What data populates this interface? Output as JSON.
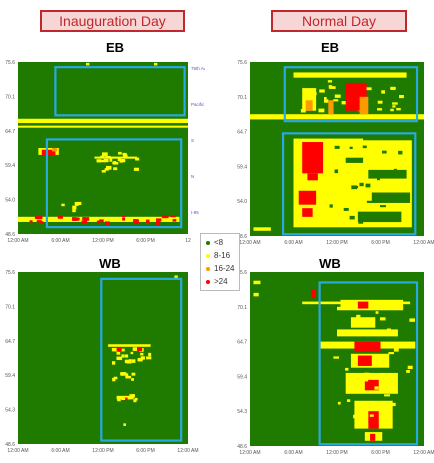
{
  "headers": {
    "left": "Inauguration Day",
    "right": "Normal Day"
  },
  "colors": {
    "green": "#1f7a00",
    "yellow": "#ffff00",
    "orange": "#ff9900",
    "red": "#ff0000",
    "highlight": "#29a9e0",
    "header_border": "#c0282d"
  },
  "legend": [
    {
      "label": "<8",
      "color": "#1f7a00"
    },
    {
      "label": "8-16",
      "color": "#ffff00"
    },
    {
      "label": "16-24",
      "color": "#ff9900"
    },
    {
      "label": ">24",
      "color": "#ff0000"
    }
  ],
  "chart_data": [
    {
      "type": "heatmap",
      "title": "EB",
      "x_ticks": [
        "12:00 AM",
        "6:00 AM",
        "12:00 PM",
        "6:00 PM",
        "12"
      ],
      "y_ticks": [
        "75.6",
        "70.1",
        "64.7",
        "59.4",
        "54.0",
        "48.6"
      ],
      "right_labels": [
        "75th Ave",
        "",
        "Pacific Ave",
        "",
        "S",
        "",
        "N",
        "",
        "I-95"
      ],
      "ylim": [
        48.6,
        75.6
      ]
    },
    {
      "type": "heatmap",
      "title": "EB",
      "x_ticks": [
        "12:00 AM",
        "6:00 AM",
        "12:00 PM",
        "6:00 PM",
        "12:00 AM"
      ],
      "y_ticks": [
        "75.6",
        "70.1",
        "64.7",
        "59.4",
        "54.0",
        "48.6"
      ],
      "ylim": [
        48.6,
        75.6
      ]
    },
    {
      "type": "heatmap",
      "title": "WB",
      "x_ticks": [
        "12:00 AM",
        "6:00 AM",
        "12:00 PM",
        "6:00 PM",
        "12:00 AM"
      ],
      "y_ticks": [
        "75.6",
        "70.1",
        "64.7",
        "59.4",
        "54.3",
        "48.6"
      ],
      "ylim": [
        48.6,
        75.6
      ]
    },
    {
      "type": "heatmap",
      "title": "WB",
      "x_ticks": [
        "12:00 AM",
        "6:00 AM",
        "12:00 PM",
        "6:00 PM",
        "12:00 AM"
      ],
      "y_ticks": [
        "75.6",
        "70.1",
        "64.7",
        "59.4",
        "54.3",
        "48.6"
      ],
      "ylim": [
        48.6,
        75.6
      ]
    }
  ]
}
